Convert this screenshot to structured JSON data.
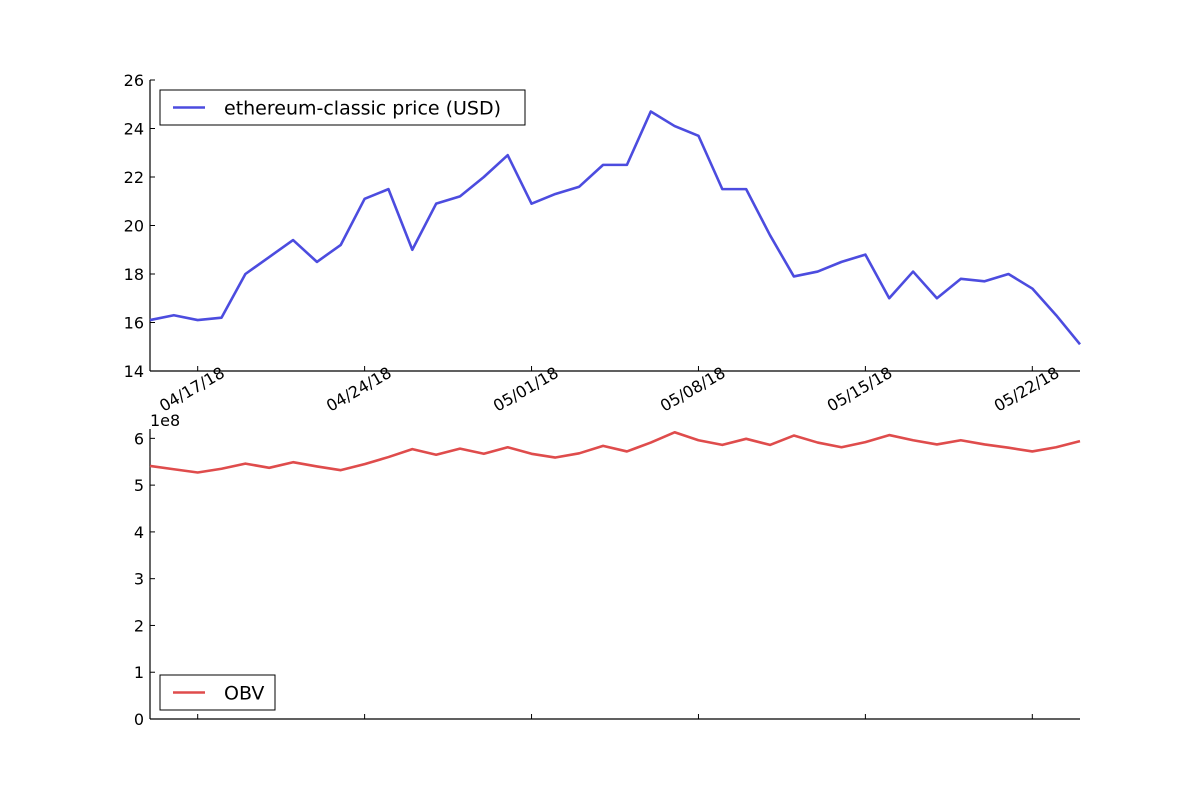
{
  "chart_data": [
    {
      "type": "line",
      "x_type": "date",
      "x_ticks": [
        "04/17/18",
        "04/24/18",
        "05/01/18",
        "05/08/18",
        "05/15/18",
        "05/22/18"
      ],
      "x_tick_dates": [
        "2018-04-17",
        "2018-04-24",
        "2018-05-01",
        "2018-05-08",
        "2018-05-15",
        "2018-05-22"
      ],
      "xlim": [
        "2018-04-15",
        "2018-05-24"
      ],
      "ylim": [
        14,
        26
      ],
      "y_ticks": [
        14,
        16,
        18,
        20,
        22,
        24,
        26
      ],
      "legend_position": "top-left",
      "grid": false,
      "series": [
        {
          "name": "ethereum-classic price (USD)",
          "color": "#4c4cdf",
          "x": [
            "2018-04-15",
            "2018-04-16",
            "2018-04-17",
            "2018-04-18",
            "2018-04-19",
            "2018-04-20",
            "2018-04-21",
            "2018-04-22",
            "2018-04-23",
            "2018-04-24",
            "2018-04-25",
            "2018-04-26",
            "2018-04-27",
            "2018-04-28",
            "2018-04-29",
            "2018-04-30",
            "2018-05-01",
            "2018-05-02",
            "2018-05-03",
            "2018-05-04",
            "2018-05-05",
            "2018-05-06",
            "2018-05-07",
            "2018-05-08",
            "2018-05-09",
            "2018-05-10",
            "2018-05-11",
            "2018-05-12",
            "2018-05-13",
            "2018-05-14",
            "2018-05-15",
            "2018-05-16",
            "2018-05-17",
            "2018-05-18",
            "2018-05-19",
            "2018-05-20",
            "2018-05-21",
            "2018-05-22",
            "2018-05-23",
            "2018-05-24"
          ],
          "values": [
            16.1,
            16.3,
            16.1,
            16.2,
            18.0,
            18.7,
            19.4,
            18.5,
            19.2,
            21.1,
            21.5,
            19.0,
            20.9,
            21.2,
            22.0,
            22.9,
            20.9,
            21.3,
            21.6,
            22.5,
            22.5,
            24.7,
            24.1,
            23.7,
            21.5,
            21.5,
            19.6,
            17.9,
            18.1,
            18.5,
            18.8,
            17.0,
            18.1,
            17.0,
            17.8,
            17.7,
            18.0,
            17.4,
            16.3,
            15.1
          ]
        }
      ]
    },
    {
      "type": "line",
      "x_type": "date",
      "xlim": [
        "2018-04-15",
        "2018-05-24"
      ],
      "ylim": [
        0,
        6.2
      ],
      "y_ticks": [
        0,
        1,
        2,
        3,
        4,
        5,
        6
      ],
      "y_offset_label": "1e8",
      "legend_position": "bottom-left",
      "grid": false,
      "series": [
        {
          "name": "OBV",
          "color": "#df4c4c",
          "x": [
            "2018-04-15",
            "2018-04-16",
            "2018-04-17",
            "2018-04-18",
            "2018-04-19",
            "2018-04-20",
            "2018-04-21",
            "2018-04-22",
            "2018-04-23",
            "2018-04-24",
            "2018-04-25",
            "2018-04-26",
            "2018-04-27",
            "2018-04-28",
            "2018-04-29",
            "2018-04-30",
            "2018-05-01",
            "2018-05-02",
            "2018-05-03",
            "2018-05-04",
            "2018-05-05",
            "2018-05-06",
            "2018-05-07",
            "2018-05-08",
            "2018-05-09",
            "2018-05-10",
            "2018-05-11",
            "2018-05-12",
            "2018-05-13",
            "2018-05-14",
            "2018-05-15",
            "2018-05-16",
            "2018-05-17",
            "2018-05-18",
            "2018-05-19",
            "2018-05-20",
            "2018-05-21",
            "2018-05-22",
            "2018-05-23",
            "2018-05-24"
          ],
          "values": [
            5.41,
            5.34,
            5.27,
            5.35,
            5.46,
            5.37,
            5.49,
            5.4,
            5.32,
            5.45,
            5.6,
            5.77,
            5.65,
            5.78,
            5.67,
            5.81,
            5.67,
            5.59,
            5.68,
            5.84,
            5.72,
            5.91,
            6.13,
            5.96,
            5.86,
            5.99,
            5.86,
            6.06,
            5.91,
            5.81,
            5.92,
            6.07,
            5.96,
            5.87,
            5.96,
            5.87,
            5.8,
            5.72,
            5.81,
            5.94
          ]
        }
      ]
    }
  ]
}
